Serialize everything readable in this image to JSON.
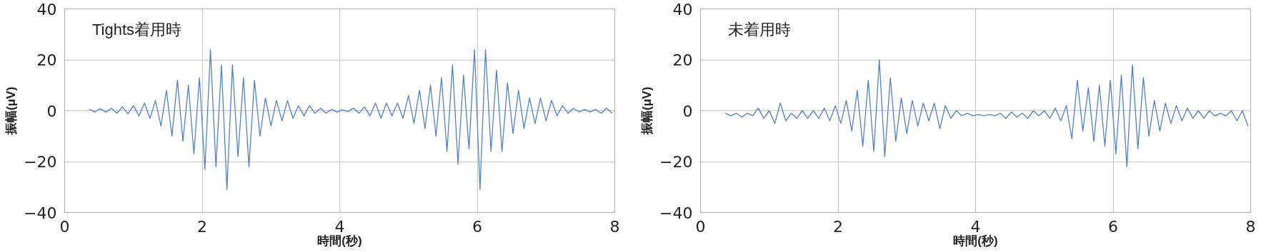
{
  "chart_data": [
    {
      "type": "line",
      "title": "Tights着用時",
      "xlabel": "時間(秒)",
      "ylabel": "振幅(μV)",
      "xlim": [
        0,
        8
      ],
      "ylim": [
        -40,
        40
      ],
      "xticks": [
        0,
        2,
        4,
        6,
        8
      ],
      "yticks": [
        -40,
        -20,
        0,
        20,
        40
      ],
      "grid": true,
      "marker": "none",
      "line_style": "solid",
      "x": [
        0.36,
        0.44,
        0.52,
        0.6,
        0.68,
        0.76,
        0.84,
        0.92,
        1.0,
        1.08,
        1.16,
        1.24,
        1.32,
        1.4,
        1.48,
        1.56,
        1.64,
        1.72,
        1.8,
        1.88,
        1.96,
        2.04,
        2.12,
        2.2,
        2.28,
        2.36,
        2.44,
        2.52,
        2.6,
        2.68,
        2.76,
        2.84,
        2.92,
        3.0,
        3.08,
        3.16,
        3.24,
        3.32,
        3.4,
        3.48,
        3.56,
        3.64,
        3.72,
        3.8,
        3.88,
        3.96,
        4.04,
        4.12,
        4.2,
        4.28,
        4.36,
        4.44,
        4.52,
        4.6,
        4.68,
        4.76,
        4.84,
        4.92,
        5.0,
        5.08,
        5.16,
        5.24,
        5.32,
        5.4,
        5.48,
        5.56,
        5.64,
        5.72,
        5.8,
        5.88,
        5.96,
        6.04,
        6.12,
        6.2,
        6.28,
        6.36,
        6.44,
        6.52,
        6.6,
        6.68,
        6.76,
        6.84,
        6.92,
        7.0,
        7.08,
        7.16,
        7.24,
        7.32,
        7.4,
        7.48,
        7.56,
        7.64,
        7.72,
        7.8,
        7.88,
        7.96
      ],
      "series": [
        {
          "color": "#4f81d0",
          "values": [
            0.5,
            -0.5,
            0.8,
            -0.6,
            1,
            -1,
            1.5,
            -1.2,
            2,
            -2,
            3,
            -3,
            4,
            -6,
            8,
            -10,
            12,
            -12,
            10,
            -17,
            13,
            -23,
            24,
            -22,
            18,
            -31,
            18,
            -18,
            13,
            -22,
            12,
            -10,
            5,
            -6,
            4,
            -4,
            4,
            -3,
            2,
            -2,
            2,
            -1,
            1,
            -1,
            0.5,
            -0.5,
            0.3,
            -0.3,
            1,
            -1,
            1.5,
            -2,
            3,
            -3,
            3,
            -2,
            3,
            -3,
            6,
            -5,
            8,
            -7,
            10,
            -10,
            13,
            -16,
            18,
            -21,
            14,
            -15,
            24,
            -31,
            24,
            -16,
            16,
            -16,
            11,
            -9,
            8,
            -7,
            5,
            -5,
            5,
            -4,
            4,
            -2,
            2,
            -1,
            1,
            -0.5,
            0.5,
            -0.5,
            0.5,
            -1,
            1,
            -1
          ]
        }
      ]
    },
    {
      "type": "line",
      "title": "未着用時",
      "xlabel": "時間(秒)",
      "ylabel": "振幅(μV)",
      "xlim": [
        0,
        8
      ],
      "ylim": [
        -40,
        40
      ],
      "xticks": [
        0,
        2,
        4,
        6,
        8
      ],
      "yticks": [
        -40,
        -20,
        0,
        20,
        40
      ],
      "grid": true,
      "marker": "none",
      "line_style": "solid",
      "x": [
        0.36,
        0.44,
        0.52,
        0.6,
        0.68,
        0.76,
        0.84,
        0.92,
        1.0,
        1.08,
        1.16,
        1.24,
        1.32,
        1.4,
        1.48,
        1.56,
        1.64,
        1.72,
        1.8,
        1.88,
        1.96,
        2.04,
        2.12,
        2.2,
        2.28,
        2.36,
        2.44,
        2.52,
        2.6,
        2.68,
        2.76,
        2.84,
        2.92,
        3.0,
        3.08,
        3.16,
        3.24,
        3.32,
        3.4,
        3.48,
        3.56,
        3.64,
        3.72,
        3.8,
        3.88,
        3.96,
        4.04,
        4.12,
        4.2,
        4.28,
        4.36,
        4.44,
        4.52,
        4.6,
        4.68,
        4.76,
        4.84,
        4.92,
        5.0,
        5.08,
        5.16,
        5.24,
        5.32,
        5.4,
        5.48,
        5.56,
        5.64,
        5.72,
        5.8,
        5.88,
        5.96,
        6.04,
        6.12,
        6.2,
        6.28,
        6.36,
        6.44,
        6.52,
        6.6,
        6.68,
        6.76,
        6.84,
        6.92,
        7.0,
        7.08,
        7.16,
        7.24,
        7.32,
        7.4,
        7.48,
        7.56,
        7.64,
        7.72,
        7.8,
        7.88,
        7.96
      ],
      "series": [
        {
          "color": "#4f81d0",
          "values": [
            -1,
            -2,
            -1,
            -2.5,
            -1,
            -2,
            1,
            -3,
            0,
            -5,
            3,
            -4,
            -1,
            -3,
            0,
            -3,
            0,
            -3,
            1,
            -4,
            2,
            -5,
            4,
            -8,
            8,
            -14,
            12,
            -16,
            20,
            -18,
            13,
            -12,
            5,
            -9,
            4,
            -6,
            3,
            -4,
            3,
            -7,
            2,
            -3,
            0,
            -2,
            -1,
            -2,
            -1.5,
            -2,
            -1.5,
            -2,
            -1,
            -3,
            -0.5,
            -2.5,
            -1,
            -3,
            0,
            -2,
            0,
            -3,
            1,
            -4,
            2,
            -11,
            12,
            -8,
            9,
            -12,
            10,
            -14,
            12,
            -17,
            14,
            -22,
            18,
            -15,
            13,
            -10,
            4,
            -8,
            3,
            -5,
            2,
            -4,
            1,
            -3,
            0,
            -3,
            0,
            -2,
            -1,
            -2,
            0,
            -4,
            0,
            -6
          ]
        }
      ]
    }
  ]
}
